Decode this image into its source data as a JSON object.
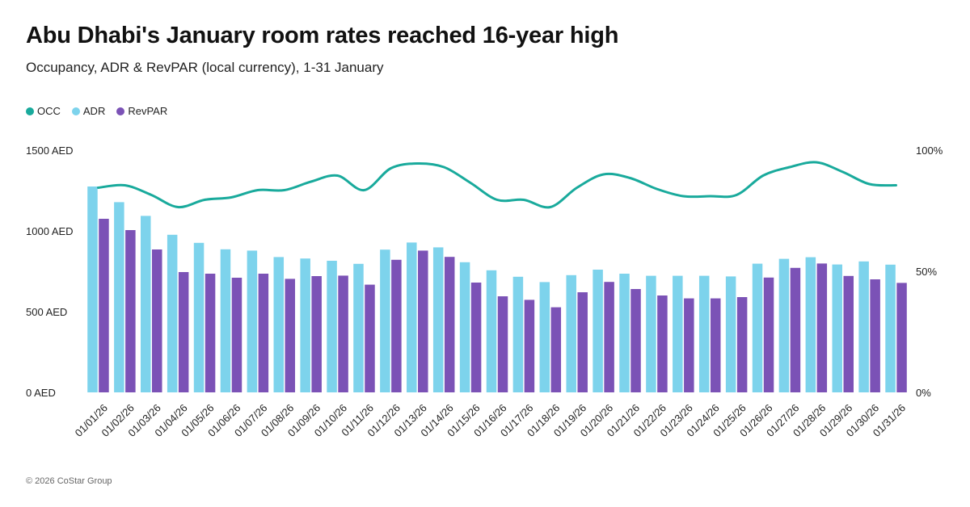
{
  "title": "Abu Dhabi's January room rates reached 16-year high",
  "subtitle": "Occupancy, ADR & RevPAR (local currency), 1-31 January",
  "footer": "© 2026 CoStar Group",
  "colors": {
    "occ": "#19AA9C",
    "adr": "#7DD3EC",
    "revpar": "#7B52B6"
  },
  "legend": [
    {
      "label": "OCC",
      "color_key": "occ",
      "icon": "circle-icon"
    },
    {
      "label": "ADR",
      "color_key": "adr",
      "icon": "circle-icon"
    },
    {
      "label": "RevPAR",
      "color_key": "revpar",
      "icon": "circle-icon"
    }
  ],
  "chart_data": {
    "type": "bar",
    "title": "Abu Dhabi's January room rates reached 16-year high",
    "subtitle": "Occupancy, ADR & RevPAR (local currency), 1-31 January",
    "categories": [
      "01/01/26",
      "01/02/26",
      "01/03/26",
      "01/04/26",
      "01/05/26",
      "01/06/26",
      "01/07/26",
      "01/08/26",
      "01/09/26",
      "01/10/26",
      "01/11/26",
      "01/12/26",
      "01/13/26",
      "01/14/26",
      "01/15/26",
      "01/16/26",
      "01/17/26",
      "01/18/26",
      "01/19/26",
      "01/20/26",
      "01/21/26",
      "01/22/26",
      "01/23/26",
      "01/24/26",
      "01/25/26",
      "01/26/26",
      "01/27/26",
      "01/28/26",
      "01/29/26",
      "01/30/26",
      "01/31/26"
    ],
    "series": [
      {
        "name": "ADR",
        "kind": "bar",
        "axis": "left",
        "values": [
          1275,
          1178,
          1093,
          976,
          926,
          886,
          878,
          838,
          829,
          815,
          796,
          884,
          928,
          898,
          806,
          756,
          716,
          683,
          726,
          760,
          735,
          722,
          722,
          722,
          718,
          797,
          827,
          837,
          792,
          811,
          791
        ]
      },
      {
        "name": "RevPAR",
        "kind": "bar",
        "axis": "left",
        "values": [
          1075,
          1005,
          885,
          745,
          735,
          710,
          735,
          703,
          720,
          723,
          667,
          821,
          878,
          839,
          680,
          595,
          573,
          527,
          620,
          684,
          640,
          600,
          582,
          582,
          590,
          711,
          771,
          798,
          721,
          700,
          678
        ]
      },
      {
        "name": "OCC",
        "kind": "line",
        "axis": "right",
        "values": [
          84.5,
          85.5,
          81.5,
          76.5,
          79.5,
          80.5,
          83.5,
          83.5,
          87,
          89.5,
          83.5,
          92.5,
          94.5,
          93,
          86.5,
          79.5,
          79.5,
          76.5,
          84.5,
          90,
          88.5,
          84,
          81,
          81,
          81.5,
          89.5,
          93,
          95,
          91,
          86,
          85.5
        ]
      }
    ],
    "y_left": {
      "min": 0,
      "max": 1500,
      "ticks": [
        0,
        500,
        1000,
        1500
      ],
      "tick_labels": [
        "0 AED",
        "500 AED",
        "1000 AED",
        "1500 AED"
      ]
    },
    "y_right": {
      "min": 0,
      "max": 100,
      "ticks": [
        0,
        50,
        100
      ],
      "tick_labels": [
        "0%",
        "50%",
        "100%"
      ]
    },
    "grid": false,
    "legend_position": "top-left"
  }
}
